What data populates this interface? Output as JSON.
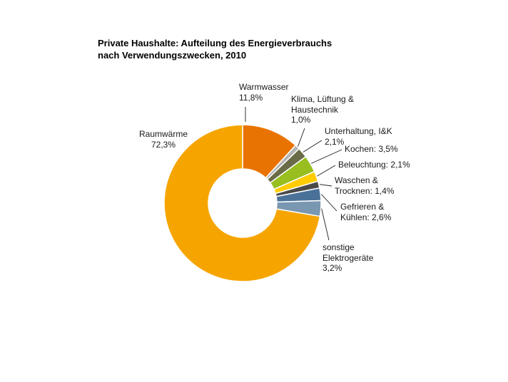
{
  "chart_data": {
    "type": "pie",
    "variant": "donut",
    "title": "Private Haushalte: Aufteilung des Energieverbrauchs nach Verwendungszwecken, 2010",
    "title_lines": [
      "Private Haushalte: Aufteilung des Energieverbrauchs",
      "nach Verwendungszwecken, 2010"
    ],
    "unit": "%",
    "start_angle_deg_from_top": 0,
    "direction": "clockwise",
    "legend_position": "none",
    "label_style": "leader-line callouts",
    "slices": [
      {
        "name": "Warmwasser",
        "value": 11.8,
        "color": "#E97300",
        "label_lines": [
          "Warmwasser",
          "11,8%"
        ]
      },
      {
        "name": "Klima, Lüftung & Haustechnik",
        "value": 1.0,
        "color": "#B3B3B3",
        "label_lines": [
          "Klima, Lüftung &",
          "Haustechnik",
          "1,0%"
        ]
      },
      {
        "name": "Unterhaltung, I&K",
        "value": 2.1,
        "color": "#6A6B47",
        "label_lines": [
          "Unterhaltung, I&K",
          "2,1%"
        ]
      },
      {
        "name": "Kochen",
        "value": 3.5,
        "color": "#98BF1F",
        "label_lines": [
          "Kochen: 3,5%"
        ]
      },
      {
        "name": "Beleuchtung",
        "value": 2.1,
        "color": "#FFCC00",
        "label_lines": [
          "Beleuchtung: 2,1%"
        ]
      },
      {
        "name": "Waschen & Trocknen",
        "value": 1.4,
        "color": "#4A4A49",
        "label_lines": [
          "Waschen &",
          "Trocknen: 1,4%"
        ]
      },
      {
        "name": "Gefrieren & Kühlen",
        "value": 2.6,
        "color": "#4A7298",
        "label_lines": [
          "Gefrieren &",
          "Kühlen: 2,6%"
        ]
      },
      {
        "name": "sonstige Elektrogeräte",
        "value": 3.2,
        "color": "#7A97B1",
        "label_lines": [
          "sonstige",
          "Elektrogeräte",
          "3,2%"
        ]
      },
      {
        "name": "Raumwärme",
        "value": 72.3,
        "color": "#F6A500",
        "label_lines": [
          "Raumwärme",
          "72,3%"
        ]
      }
    ]
  }
}
